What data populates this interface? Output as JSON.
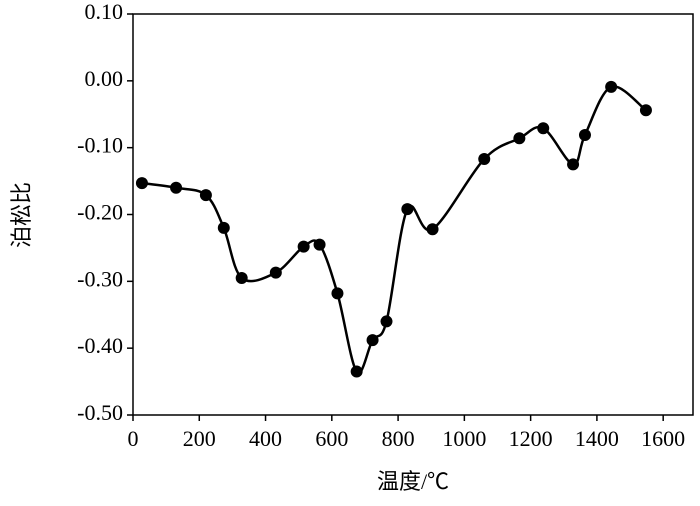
{
  "chart_data": {
    "type": "line",
    "x_label": "温度/℃",
    "y_label": "泊松比",
    "x": [
      27,
      130,
      220,
      274,
      328,
      431,
      515,
      563,
      617,
      675,
      723,
      765,
      828,
      904,
      1060,
      1166,
      1238,
      1328,
      1364,
      1443,
      1548
    ],
    "series": [
      {
        "color": "#000000",
        "values": [
          -0.153,
          -0.16,
          -0.171,
          -0.22,
          -0.295,
          -0.287,
          -0.248,
          -0.245,
          -0.318,
          -0.435,
          -0.388,
          -0.36,
          -0.192,
          -0.222,
          -0.117,
          -0.086,
          -0.071,
          -0.125,
          -0.081,
          -0.009,
          -0.044
        ]
      }
    ],
    "xlim": [
      0,
      1690
    ],
    "xticks": [
      0,
      200,
      400,
      600,
      800,
      1000,
      1200,
      1400,
      1600
    ],
    "ylim": [
      -0.5,
      0.1
    ],
    "yticks": [
      {
        "value": -0.5,
        "label": "-0.50"
      },
      {
        "value": -0.4,
        "label": "-0.40"
      },
      {
        "value": -0.3,
        "label": "-0.30"
      },
      {
        "value": -0.2,
        "label": "-0.20"
      },
      {
        "value": -0.1,
        "label": "-0.10"
      },
      {
        "value": 0,
        "label": "0.00"
      },
      {
        "value": 0.1,
        "label": "0.10"
      }
    ],
    "smooth": true,
    "markers": true
  }
}
